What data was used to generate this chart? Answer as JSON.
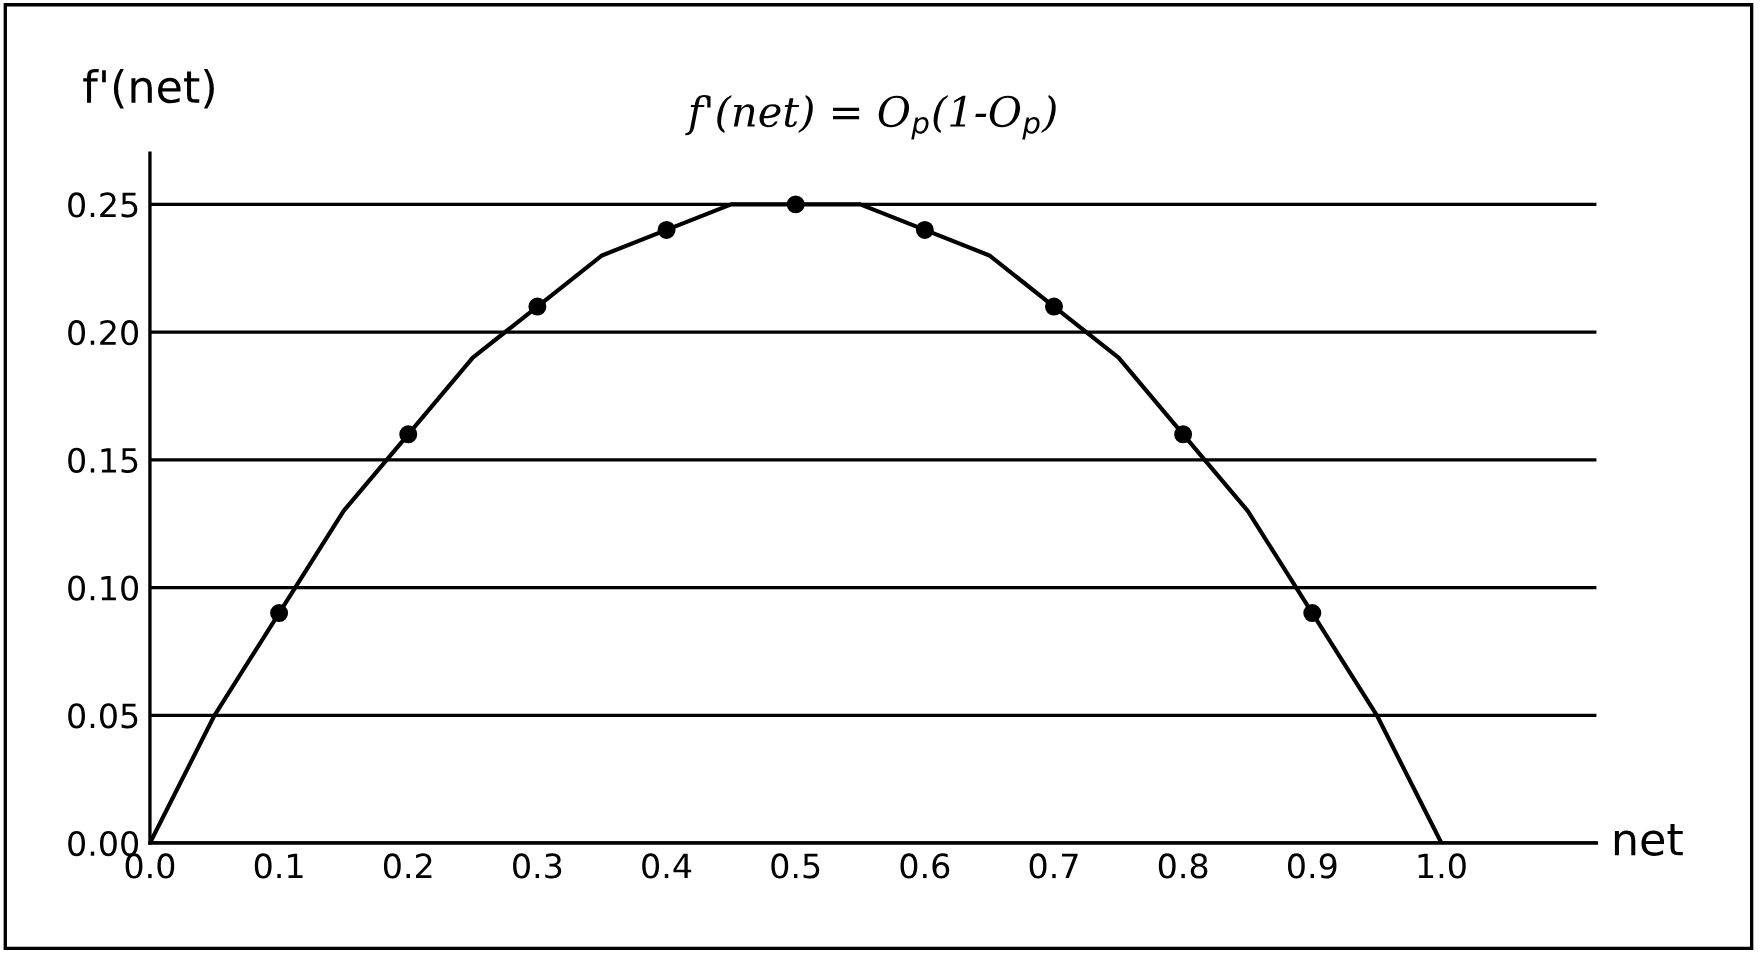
{
  "chart_data": {
    "type": "line",
    "title": "f'(net) = O$_{p}$(1-O$_{p}$)",
    "xlabel": "net",
    "ylabel": "f'(net)",
    "series": [
      {
        "color": "#000000",
        "marker": "none",
        "line_style": "solid",
        "x": [
          0,
          0.05,
          0.1,
          0.15,
          0.2,
          0.25,
          0.3,
          0.35,
          0.4,
          0.45,
          0.5,
          0.55,
          0.6,
          0.65,
          0.7,
          0.75,
          0.8,
          0.85,
          0.9,
          0.95,
          1.0
        ],
        "values": [
          0,
          0.05,
          0.09,
          0.13,
          0.16,
          0.19,
          0.21,
          0.23,
          0.24,
          0.25,
          0.25,
          0.25,
          0.24,
          0.23,
          0.21,
          0.19,
          0.16,
          0.13,
          0.09,
          0.05,
          0
        ]
      },
      {
        "type": "scatter",
        "color": "#000000",
        "marker": "circle",
        "x": [
          0.1,
          0.2,
          0.3,
          0.4,
          0.5,
          0.6,
          0.7,
          0.8,
          0.9
        ],
        "values": [
          0.09,
          0.16,
          0.21,
          0.24,
          0.25,
          0.24,
          0.21,
          0.16,
          0.09
        ]
      }
    ],
    "xlim": [
      0,
      1.12
    ],
    "ylim": [
      0,
      0.27
    ],
    "xticks": [
      {
        "value": 0,
        "label": "0.0"
      },
      0.1,
      0.2,
      0.3,
      0.4,
      0.5,
      0.6,
      0.7,
      0.8,
      0.9,
      {
        "value": 1,
        "label": "1.0"
      }
    ],
    "yticks": [
      {
        "value": 0,
        "label": "0.00"
      },
      0.05,
      {
        "value": 0.1,
        "label": "0.10"
      },
      0.15,
      {
        "value": 0.2,
        "label": "0.20"
      },
      0.25
    ],
    "grid": "y",
    "legend": false
  }
}
